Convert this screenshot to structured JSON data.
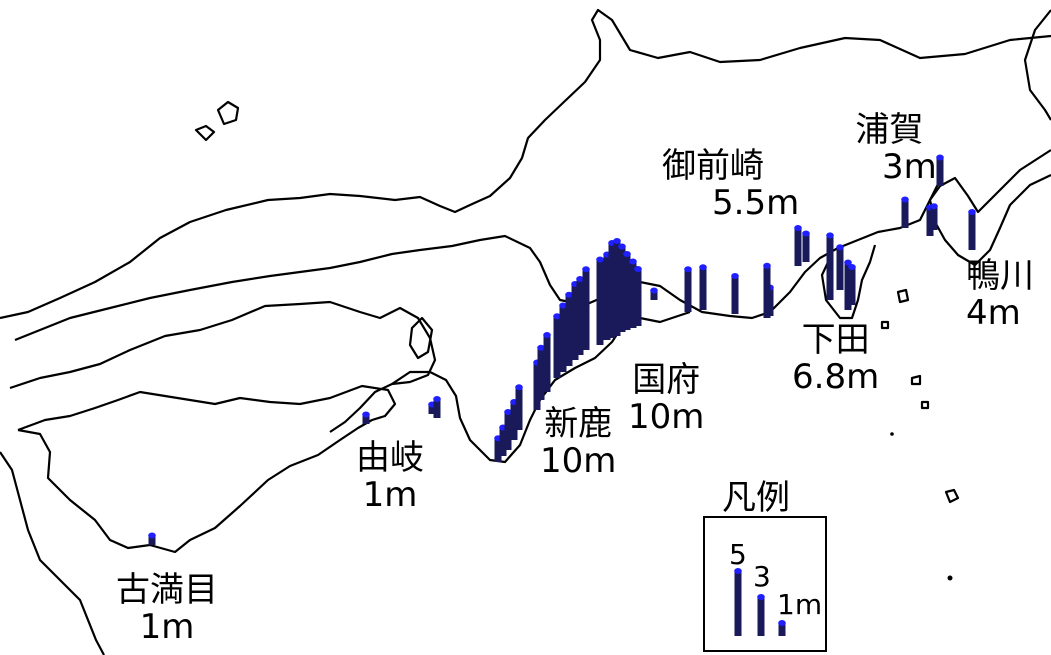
{
  "colors": {
    "bar": "#1a1a5a",
    "cap": "#1f1fff",
    "coast": "#000000",
    "background": "#ffffff"
  },
  "places": [
    {
      "id": "urakawa",
      "name": "浦賀",
      "height": "3m"
    },
    {
      "id": "omaezaki",
      "name": "御前崎",
      "height": "5.5m"
    },
    {
      "id": "kamogawa",
      "name": "鴨川",
      "height": "4m"
    },
    {
      "id": "shimoda",
      "name": "下田",
      "height": "6.8m"
    },
    {
      "id": "kokufu",
      "name": "国府",
      "height": "10m"
    },
    {
      "id": "shinka",
      "name": "新鹿",
      "height": "10m"
    },
    {
      "id": "yuki",
      "name": "由岐",
      "height": "1m"
    },
    {
      "id": "komame",
      "name": "古満目",
      "height": "1m"
    }
  ],
  "legend": {
    "title": "凡例",
    "levels": [
      "5",
      "3",
      "1m"
    ]
  },
  "bars_m": [
    1,
    1,
    1,
    2,
    2.5,
    3,
    4,
    4,
    4.5,
    5,
    5.5,
    6,
    6.5,
    7,
    7.5,
    8,
    8,
    8.5,
    9,
    9,
    10,
    10,
    9,
    8,
    7,
    6,
    1,
    4.5,
    4.5,
    4,
    3,
    5.5,
    4,
    3,
    6.8,
    4.5,
    5,
    4,
    3,
    3,
    2.5,
    3,
    4
  ]
}
